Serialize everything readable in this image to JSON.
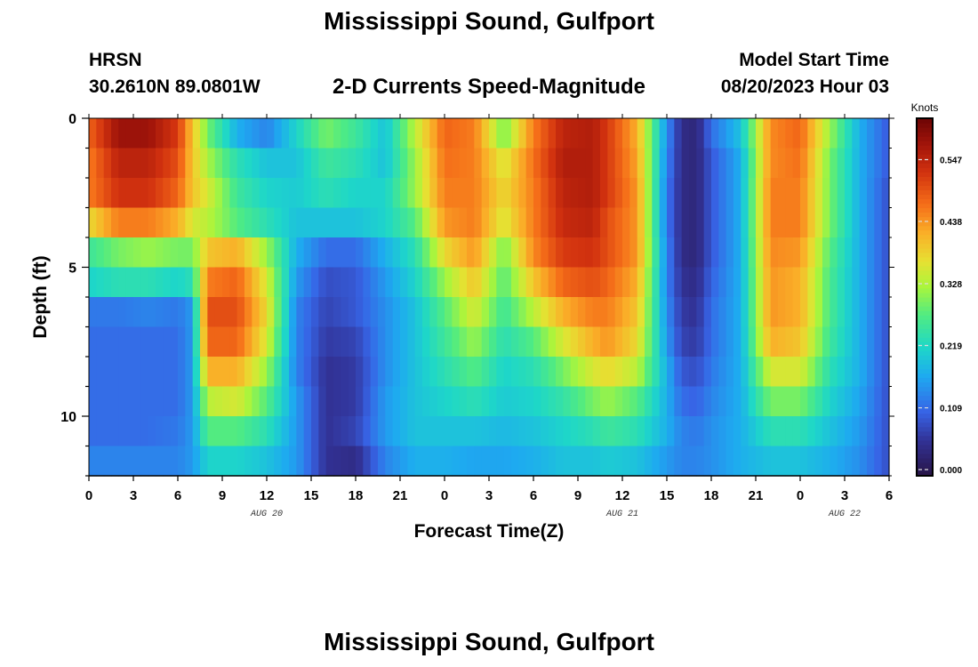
{
  "header": {
    "title": "Mississippi Sound, Gulfport",
    "station": "HRSN",
    "coords": "30.2610N  89.0801W",
    "subtitle": "2-D Currents Speed-Magnitude",
    "model_start_label": "Model Start Time",
    "model_start_value": "08/20/2023 Hour 03"
  },
  "footer": {
    "title": "Mississippi Sound, Gulfport"
  },
  "chart_data": {
    "type": "heatmap",
    "title": "2-D Currents Speed-Magnitude",
    "xlabel": "Forecast Time(Z)",
    "ylabel": "Depth (ft)",
    "x_hours_range": [
      0,
      54
    ],
    "y_range": [
      0,
      12
    ],
    "x_tick_labels": [
      "0",
      "3",
      "6",
      "9",
      "12",
      "15",
      "18",
      "21",
      "0",
      "3",
      "6",
      "9",
      "12",
      "15",
      "18",
      "21",
      "0",
      "3",
      "6"
    ],
    "y_tick_labels": [
      "0",
      "5",
      "10"
    ],
    "day_labels": [
      {
        "label": "AUG 20",
        "hour": 12
      },
      {
        "label": "AUG 21",
        "hour": 36
      },
      {
        "label": "AUG 22",
        "hour": 51
      }
    ],
    "colorbar": {
      "label": "Knots",
      "min": 0.0,
      "max": 0.62,
      "ticks": [
        "0.000",
        "0.109",
        "0.219",
        "0.328",
        "0.438",
        "0.547"
      ]
    },
    "depth_layers": [
      0,
      1,
      2,
      3,
      4,
      5,
      6,
      7,
      8,
      9,
      10,
      11
    ],
    "key_hours": [
      0,
      2,
      4,
      6,
      7,
      8,
      10,
      12,
      14,
      16,
      18,
      20,
      22,
      24,
      26,
      28,
      30,
      32,
      34,
      35,
      37,
      39,
      40,
      41,
      42,
      44,
      46,
      48,
      50,
      52,
      54
    ],
    "key_values": [
      [
        0.48,
        0.58,
        0.58,
        0.52,
        0.4,
        0.3,
        0.18,
        0.14,
        0.22,
        0.3,
        0.26,
        0.2,
        0.34,
        0.48,
        0.46,
        0.3,
        0.46,
        0.55,
        0.56,
        0.52,
        0.42,
        0.15,
        0.05,
        0.04,
        0.12,
        0.2,
        0.45,
        0.48,
        0.32,
        0.18,
        0.1
      ],
      [
        0.46,
        0.55,
        0.55,
        0.5,
        0.4,
        0.33,
        0.24,
        0.2,
        0.2,
        0.26,
        0.24,
        0.2,
        0.32,
        0.47,
        0.46,
        0.36,
        0.47,
        0.56,
        0.56,
        0.52,
        0.43,
        0.14,
        0.05,
        0.04,
        0.1,
        0.18,
        0.45,
        0.47,
        0.3,
        0.18,
        0.1
      ],
      [
        0.46,
        0.53,
        0.53,
        0.48,
        0.4,
        0.36,
        0.26,
        0.22,
        0.21,
        0.24,
        0.22,
        0.22,
        0.32,
        0.46,
        0.46,
        0.38,
        0.46,
        0.55,
        0.56,
        0.52,
        0.44,
        0.13,
        0.05,
        0.04,
        0.1,
        0.18,
        0.46,
        0.46,
        0.3,
        0.18,
        0.09
      ],
      [
        0.38,
        0.46,
        0.46,
        0.42,
        0.36,
        0.34,
        0.28,
        0.24,
        0.2,
        0.2,
        0.2,
        0.22,
        0.28,
        0.44,
        0.46,
        0.36,
        0.46,
        0.54,
        0.55,
        0.5,
        0.44,
        0.13,
        0.05,
        0.04,
        0.1,
        0.18,
        0.46,
        0.46,
        0.3,
        0.18,
        0.09
      ],
      [
        0.26,
        0.3,
        0.32,
        0.3,
        0.3,
        0.4,
        0.42,
        0.32,
        0.18,
        0.12,
        0.12,
        0.18,
        0.24,
        0.38,
        0.44,
        0.3,
        0.45,
        0.52,
        0.53,
        0.5,
        0.44,
        0.14,
        0.05,
        0.04,
        0.1,
        0.18,
        0.45,
        0.44,
        0.28,
        0.18,
        0.09
      ],
      [
        0.22,
        0.24,
        0.24,
        0.22,
        0.24,
        0.46,
        0.48,
        0.36,
        0.16,
        0.09,
        0.1,
        0.16,
        0.22,
        0.32,
        0.4,
        0.28,
        0.4,
        0.48,
        0.5,
        0.48,
        0.42,
        0.14,
        0.06,
        0.05,
        0.11,
        0.18,
        0.44,
        0.42,
        0.27,
        0.18,
        0.09
      ],
      [
        0.13,
        0.13,
        0.14,
        0.13,
        0.16,
        0.5,
        0.5,
        0.38,
        0.14,
        0.08,
        0.1,
        0.15,
        0.2,
        0.28,
        0.36,
        0.26,
        0.34,
        0.42,
        0.46,
        0.46,
        0.4,
        0.15,
        0.07,
        0.06,
        0.12,
        0.18,
        0.44,
        0.42,
        0.27,
        0.18,
        0.09
      ],
      [
        0.12,
        0.12,
        0.12,
        0.12,
        0.16,
        0.48,
        0.48,
        0.36,
        0.14,
        0.07,
        0.08,
        0.15,
        0.2,
        0.26,
        0.32,
        0.24,
        0.28,
        0.36,
        0.42,
        0.44,
        0.38,
        0.16,
        0.08,
        0.07,
        0.12,
        0.18,
        0.42,
        0.4,
        0.26,
        0.18,
        0.09
      ],
      [
        0.12,
        0.12,
        0.12,
        0.12,
        0.16,
        0.42,
        0.42,
        0.32,
        0.14,
        0.06,
        0.07,
        0.15,
        0.2,
        0.24,
        0.28,
        0.22,
        0.24,
        0.3,
        0.36,
        0.38,
        0.34,
        0.18,
        0.1,
        0.09,
        0.13,
        0.18,
        0.36,
        0.36,
        0.24,
        0.18,
        0.09
      ],
      [
        0.12,
        0.12,
        0.12,
        0.12,
        0.16,
        0.34,
        0.36,
        0.28,
        0.16,
        0.06,
        0.07,
        0.16,
        0.2,
        0.22,
        0.24,
        0.21,
        0.22,
        0.25,
        0.3,
        0.32,
        0.28,
        0.18,
        0.12,
        0.11,
        0.14,
        0.18,
        0.3,
        0.3,
        0.22,
        0.17,
        0.09
      ],
      [
        0.12,
        0.12,
        0.12,
        0.13,
        0.16,
        0.28,
        0.28,
        0.24,
        0.16,
        0.06,
        0.08,
        0.16,
        0.2,
        0.2,
        0.2,
        0.19,
        0.2,
        0.22,
        0.24,
        0.26,
        0.24,
        0.18,
        0.14,
        0.13,
        0.15,
        0.18,
        0.24,
        0.24,
        0.2,
        0.16,
        0.09
      ],
      [
        0.14,
        0.14,
        0.14,
        0.14,
        0.16,
        0.22,
        0.22,
        0.2,
        0.16,
        0.06,
        0.05,
        0.14,
        0.18,
        0.18,
        0.17,
        0.17,
        0.18,
        0.2,
        0.2,
        0.21,
        0.2,
        0.16,
        0.14,
        0.14,
        0.15,
        0.18,
        0.2,
        0.2,
        0.18,
        0.15,
        0.09
      ]
    ]
  }
}
